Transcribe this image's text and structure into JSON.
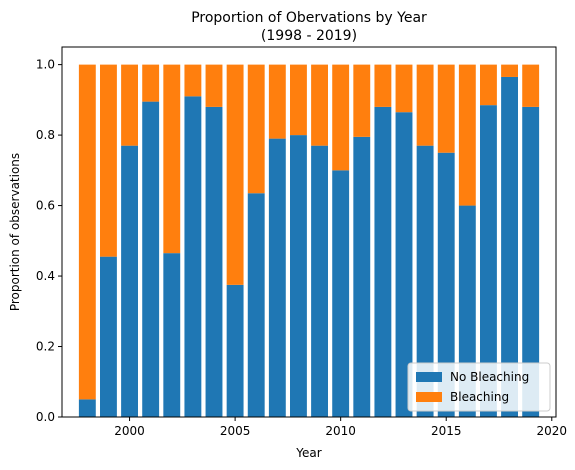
{
  "chart_data": {
    "type": "bar",
    "stacked": true,
    "title": "Proportion of Obervations by Year",
    "subtitle": "(1998 - 2019)",
    "xlabel": "Year",
    "ylabel": "Proportion of observations",
    "xlim": [
      1996.8,
      2020.2
    ],
    "ylim": [
      0,
      1.05
    ],
    "xticks": [
      2000,
      2005,
      2010,
      2015,
      2020
    ],
    "xtick_labels": [
      "2000",
      "2005",
      "2010",
      "2015",
      "2020"
    ],
    "yticks": [
      0.0,
      0.2,
      0.4,
      0.6,
      0.8,
      1.0
    ],
    "ytick_labels": [
      "0.0",
      "0.2",
      "0.4",
      "0.6",
      "0.8",
      "1.0"
    ],
    "grid": false,
    "legend_position": "lower-right",
    "x": [
      1998,
      1999,
      2000,
      2001,
      2002,
      2003,
      2004,
      2005,
      2006,
      2007,
      2008,
      2009,
      2010,
      2011,
      2012,
      2013,
      2014,
      2015,
      2016,
      2017,
      2018,
      2019
    ],
    "series": [
      {
        "name": "No Bleaching",
        "color": "#1f77b4",
        "values": [
          0.05,
          0.455,
          0.77,
          0.895,
          0.465,
          0.91,
          0.88,
          0.375,
          0.635,
          0.79,
          0.8,
          0.77,
          0.7,
          0.795,
          0.88,
          0.865,
          0.77,
          0.75,
          0.6,
          0.885,
          0.965,
          0.88
        ]
      },
      {
        "name": "Bleaching",
        "color": "#ff7f0e",
        "values": [
          0.95,
          0.545,
          0.23,
          0.105,
          0.535,
          0.09,
          0.12,
          0.625,
          0.365,
          0.21,
          0.2,
          0.23,
          0.3,
          0.205,
          0.12,
          0.135,
          0.23,
          0.25,
          0.4,
          0.115,
          0.035,
          0.12
        ]
      }
    ]
  }
}
